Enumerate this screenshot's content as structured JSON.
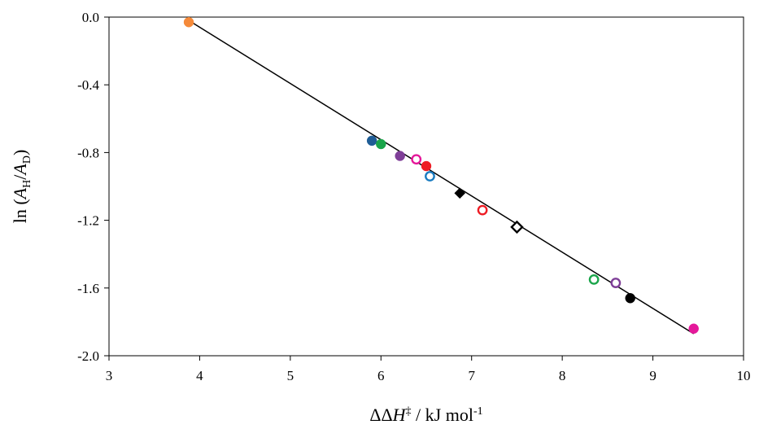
{
  "chart_data": {
    "type": "scatter",
    "x_tick_labels": [
      "3",
      "4",
      "5",
      "6",
      "7",
      "8",
      "9",
      "10"
    ],
    "y_tick_labels": [
      "0.0",
      "-0.4",
      "-0.8",
      "-1.2",
      "-1.6",
      "-2.0"
    ],
    "xlim": [
      3,
      10
    ],
    "ylim": [
      -2.0,
      0.0
    ],
    "x_ticks": [
      3,
      4,
      5,
      6,
      7,
      8,
      9,
      10
    ],
    "y_ticks": [
      0.0,
      -0.4,
      -0.8,
      -1.2,
      -1.6,
      -2.0
    ],
    "xlabel_parts": [
      "ΔΔ",
      "H",
      "‡",
      " / kJ mol",
      "-1"
    ],
    "ylabel_parts": [
      "ln (",
      "A",
      "H",
      "/",
      "A",
      "D",
      ")"
    ],
    "grid": false,
    "points": [
      {
        "x": 3.88,
        "y": -0.03,
        "marker": "circle",
        "filled": true,
        "color": "#f58a3a"
      },
      {
        "x": 5.9,
        "y": -0.73,
        "marker": "circle",
        "filled": true,
        "color": "#1f5d96"
      },
      {
        "x": 6.0,
        "y": -0.75,
        "marker": "circle",
        "filled": true,
        "color": "#1aa54a"
      },
      {
        "x": 6.21,
        "y": -0.82,
        "marker": "circle",
        "filled": true,
        "color": "#7f3f98"
      },
      {
        "x": 6.39,
        "y": -0.84,
        "marker": "circle",
        "filled": false,
        "color": "#e5189a"
      },
      {
        "x": 6.5,
        "y": -0.88,
        "marker": "circle",
        "filled": true,
        "color": "#ee1c24"
      },
      {
        "x": 6.54,
        "y": -0.94,
        "marker": "circle",
        "filled": false,
        "color": "#1a7cc1"
      },
      {
        "x": 6.87,
        "y": -1.04,
        "marker": "diamond",
        "filled": true,
        "color": "#000000"
      },
      {
        "x": 7.12,
        "y": -1.14,
        "marker": "circle",
        "filled": false,
        "color": "#ee1c24"
      },
      {
        "x": 7.5,
        "y": -1.24,
        "marker": "diamond",
        "filled": false,
        "color": "#000000"
      },
      {
        "x": 8.35,
        "y": -1.55,
        "marker": "circle",
        "filled": false,
        "color": "#1aa54a"
      },
      {
        "x": 8.59,
        "y": -1.57,
        "marker": "circle",
        "filled": false,
        "color": "#7f3f98"
      },
      {
        "x": 8.75,
        "y": -1.66,
        "marker": "circle",
        "filled": true,
        "color": "#000000"
      },
      {
        "x": 9.45,
        "y": -1.84,
        "marker": "circle",
        "filled": true,
        "color": "#e5189a"
      }
    ],
    "fit_line": {
      "x": [
        3.88,
        9.45
      ],
      "y": [
        -0.02,
        -1.87
      ],
      "color": "#000000"
    }
  }
}
